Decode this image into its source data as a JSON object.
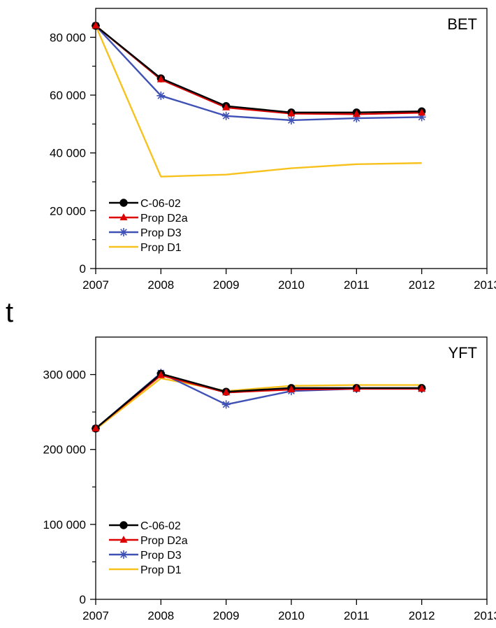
{
  "unit_label": "t",
  "chart_data": [
    {
      "type": "line",
      "title": "BET",
      "xlabel": "",
      "ylabel": "",
      "xlim": [
        2007,
        2013
      ],
      "x_ticks": [
        "2007",
        "2008",
        "2009",
        "2010",
        "2011",
        "2012",
        "2013"
      ],
      "ylim": [
        0,
        90000
      ],
      "y_ticks": [
        0,
        20000,
        40000,
        60000,
        80000
      ],
      "y_tick_labels": [
        "0",
        "20 000",
        "40 000",
        "60 000",
        "80 000"
      ],
      "grid": false,
      "legend": "bottom-left",
      "x": [
        2007,
        2008,
        2009,
        2010,
        2011,
        2012
      ],
      "series": [
        {
          "name": "C-06-02",
          "color": "#000000",
          "marker": "circle",
          "values": [
            84000,
            65800,
            56200,
            54000,
            54000,
            54400
          ]
        },
        {
          "name": "Prop D2a",
          "color": "#dd0000",
          "marker": "triangle",
          "values": [
            84000,
            65400,
            55700,
            53600,
            53400,
            53900
          ]
        },
        {
          "name": "Prop D3",
          "color": "#3f51b5",
          "marker": "asterisk",
          "values": [
            84000,
            59800,
            52800,
            51300,
            52000,
            52400
          ]
        },
        {
          "name": "Prop D1",
          "color": "#f7c21e",
          "marker": "none",
          "values": [
            84000,
            31800,
            32500,
            34700,
            36100,
            36500
          ]
        }
      ]
    },
    {
      "type": "line",
      "title": "YFT",
      "xlabel": "",
      "ylabel": "",
      "xlim": [
        2007,
        2013
      ],
      "x_ticks": [
        "2007",
        "2008",
        "2009",
        "2010",
        "2011",
        "2012",
        "2013"
      ],
      "ylim": [
        0,
        350000
      ],
      "y_ticks": [
        0,
        100000,
        200000,
        300000
      ],
      "y_tick_labels": [
        "0",
        "100 000",
        "200 000",
        "300 000"
      ],
      "grid": false,
      "legend": "bottom-left",
      "x": [
        2007,
        2008,
        2009,
        2010,
        2011,
        2012
      ],
      "series": [
        {
          "name": "C-06-02",
          "color": "#000000",
          "marker": "circle",
          "values": [
            228000,
            301000,
            277000,
            282000,
            282000,
            282000
          ]
        },
        {
          "name": "Prop D2a",
          "color": "#dd0000",
          "marker": "triangle",
          "values": [
            228000,
            299000,
            276000,
            280000,
            281000,
            281000
          ]
        },
        {
          "name": "Prop D3",
          "color": "#3f51b5",
          "marker": "asterisk",
          "values": [
            228000,
            302000,
            260000,
            278000,
            281000,
            281000
          ]
        },
        {
          "name": "Prop D1",
          "color": "#f7c21e",
          "marker": "none",
          "values": [
            227000,
            295000,
            278000,
            285000,
            286000,
            286000
          ]
        }
      ]
    }
  ]
}
